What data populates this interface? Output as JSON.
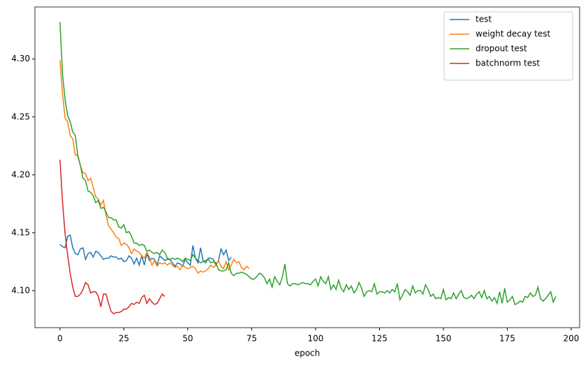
{
  "chart_data": {
    "type": "line",
    "x_label": "epoch",
    "xlim": [
      -9.8,
      203.3
    ],
    "ylim": [
      4.068,
      4.345
    ],
    "xticks": [
      0,
      25,
      50,
      75,
      100,
      125,
      150,
      175,
      200
    ],
    "yticks": [
      {
        "value": 4.1,
        "label": "4.10"
      },
      {
        "value": 4.15,
        "label": "4.15"
      },
      {
        "value": 4.2,
        "label": "4.20"
      },
      {
        "value": 4.25,
        "label": "4.25"
      },
      {
        "value": 4.3,
        "label": "4.30"
      }
    ],
    "grid": false,
    "legend": "upper right",
    "series": [
      {
        "name": "test",
        "color": "#1f77b4",
        "values": [
          4.14,
          4.138,
          4.137,
          4.147,
          4.148,
          4.137,
          4.132,
          4.131,
          4.136,
          4.137,
          4.127,
          4.132,
          4.133,
          4.129,
          4.134,
          4.133,
          4.13,
          4.127,
          4.128,
          4.128,
          4.13,
          4.129,
          4.129,
          4.127,
          4.128,
          4.125,
          4.126,
          4.13,
          4.128,
          4.123,
          4.128,
          4.122,
          4.13,
          4.122,
          4.132,
          4.126,
          4.128,
          4.127,
          4.122,
          4.13,
          4.128,
          4.126,
          4.127,
          4.127,
          4.124,
          4.121,
          4.124,
          4.123,
          4.121,
          4.127,
          4.124,
          4.122,
          4.139,
          4.128,
          4.124,
          4.137,
          4.126,
          4.124,
          4.128,
          4.128,
          4.127,
          4.122,
          4.126,
          4.136,
          4.131,
          4.135,
          4.126,
          4.129
        ]
      },
      {
        "name": "weight decay test",
        "color": "#ff7f0e",
        "values": [
          4.299,
          4.27,
          4.249,
          4.246,
          4.234,
          4.231,
          4.217,
          4.217,
          4.208,
          4.202,
          4.201,
          4.195,
          4.197,
          4.189,
          4.181,
          4.179,
          4.174,
          4.178,
          4.165,
          4.156,
          4.153,
          4.15,
          4.146,
          4.145,
          4.139,
          4.141,
          4.14,
          4.137,
          4.132,
          4.136,
          4.134,
          4.133,
          4.13,
          4.128,
          4.133,
          4.129,
          4.122,
          4.126,
          4.121,
          4.124,
          4.123,
          4.124,
          4.122,
          4.124,
          4.122,
          4.12,
          4.121,
          4.118,
          4.122,
          4.12,
          4.119,
          4.12,
          4.121,
          4.119,
          4.115,
          4.117,
          4.116,
          4.117,
          4.119,
          4.122,
          4.12,
          4.122,
          4.126,
          4.121,
          4.119,
          4.125,
          4.118,
          4.122,
          4.127,
          4.124,
          4.125,
          4.12,
          4.118,
          4.121,
          4.119
        ]
      },
      {
        "name": "dropout test",
        "color": "#2ca02c",
        "values": [
          4.332,
          4.287,
          4.265,
          4.251,
          4.246,
          4.237,
          4.234,
          4.216,
          4.208,
          4.197,
          4.195,
          4.186,
          4.185,
          4.182,
          4.176,
          4.178,
          4.171,
          4.172,
          4.168,
          4.163,
          4.163,
          4.161,
          4.161,
          4.155,
          4.154,
          4.157,
          4.15,
          4.151,
          4.147,
          4.141,
          4.141,
          4.139,
          4.14,
          4.139,
          4.134,
          4.135,
          4.133,
          4.132,
          4.133,
          4.131,
          4.135,
          4.133,
          4.128,
          4.127,
          4.128,
          4.127,
          4.128,
          4.127,
          4.125,
          4.128,
          4.127,
          4.126,
          4.131,
          4.128,
          4.126,
          4.124,
          4.125,
          4.126,
          4.127,
          4.124,
          4.125,
          4.124,
          4.118,
          4.117,
          4.117,
          4.118,
          4.124,
          4.115,
          4.113,
          4.115,
          4.115,
          4.116,
          4.115,
          4.114,
          4.112,
          4.11,
          4.11,
          4.112,
          4.115,
          4.114,
          4.111,
          4.106,
          4.11,
          4.103,
          4.112,
          4.108,
          4.105,
          4.112,
          4.123,
          4.106,
          4.104,
          4.106,
          4.106,
          4.105,
          4.106,
          4.107,
          4.106,
          4.106,
          4.105,
          4.108,
          4.11,
          4.104,
          4.112,
          4.108,
          4.106,
          4.112,
          4.101,
          4.105,
          4.101,
          4.109,
          4.102,
          4.099,
          4.105,
          4.101,
          4.104,
          4.098,
          4.101,
          4.107,
          4.102,
          4.095,
          4.099,
          4.1,
          4.099,
          4.106,
          4.097,
          4.099,
          4.099,
          4.098,
          4.1,
          4.098,
          4.101,
          4.099,
          4.106,
          4.092,
          4.096,
          4.101,
          4.099,
          4.096,
          4.104,
          4.098,
          4.1,
          4.1,
          4.097,
          4.105,
          4.101,
          4.095,
          4.097,
          4.093,
          4.094,
          4.093,
          4.101,
          4.092,
          4.094,
          4.093,
          4.098,
          4.093,
          4.097,
          4.1,
          4.094,
          4.093,
          4.094,
          4.096,
          4.093,
          4.097,
          4.099,
          4.094,
          4.1,
          4.093,
          4.095,
          4.091,
          4.094,
          4.089,
          4.099,
          4.089,
          4.102,
          4.09,
          4.092,
          4.095,
          4.088,
          4.089,
          4.091,
          4.09,
          4.095,
          4.094,
          4.098,
          4.095,
          4.096,
          4.103,
          4.093,
          4.091,
          4.093,
          4.096,
          4.099,
          4.09,
          4.095
        ]
      },
      {
        "name": "batchnorm test",
        "color": "#d62728",
        "values": [
          4.213,
          4.177,
          4.149,
          4.131,
          4.115,
          4.103,
          4.095,
          4.095,
          4.097,
          4.101,
          4.107,
          4.105,
          4.098,
          4.099,
          4.099,
          4.095,
          4.086,
          4.097,
          4.097,
          4.089,
          4.082,
          4.08,
          4.081,
          4.081,
          4.082,
          4.084,
          4.084,
          4.086,
          4.089,
          4.088,
          4.09,
          4.089,
          4.094,
          4.096,
          4.089,
          4.093,
          4.09,
          4.088,
          4.089,
          4.093,
          4.097,
          4.095
        ]
      }
    ]
  }
}
